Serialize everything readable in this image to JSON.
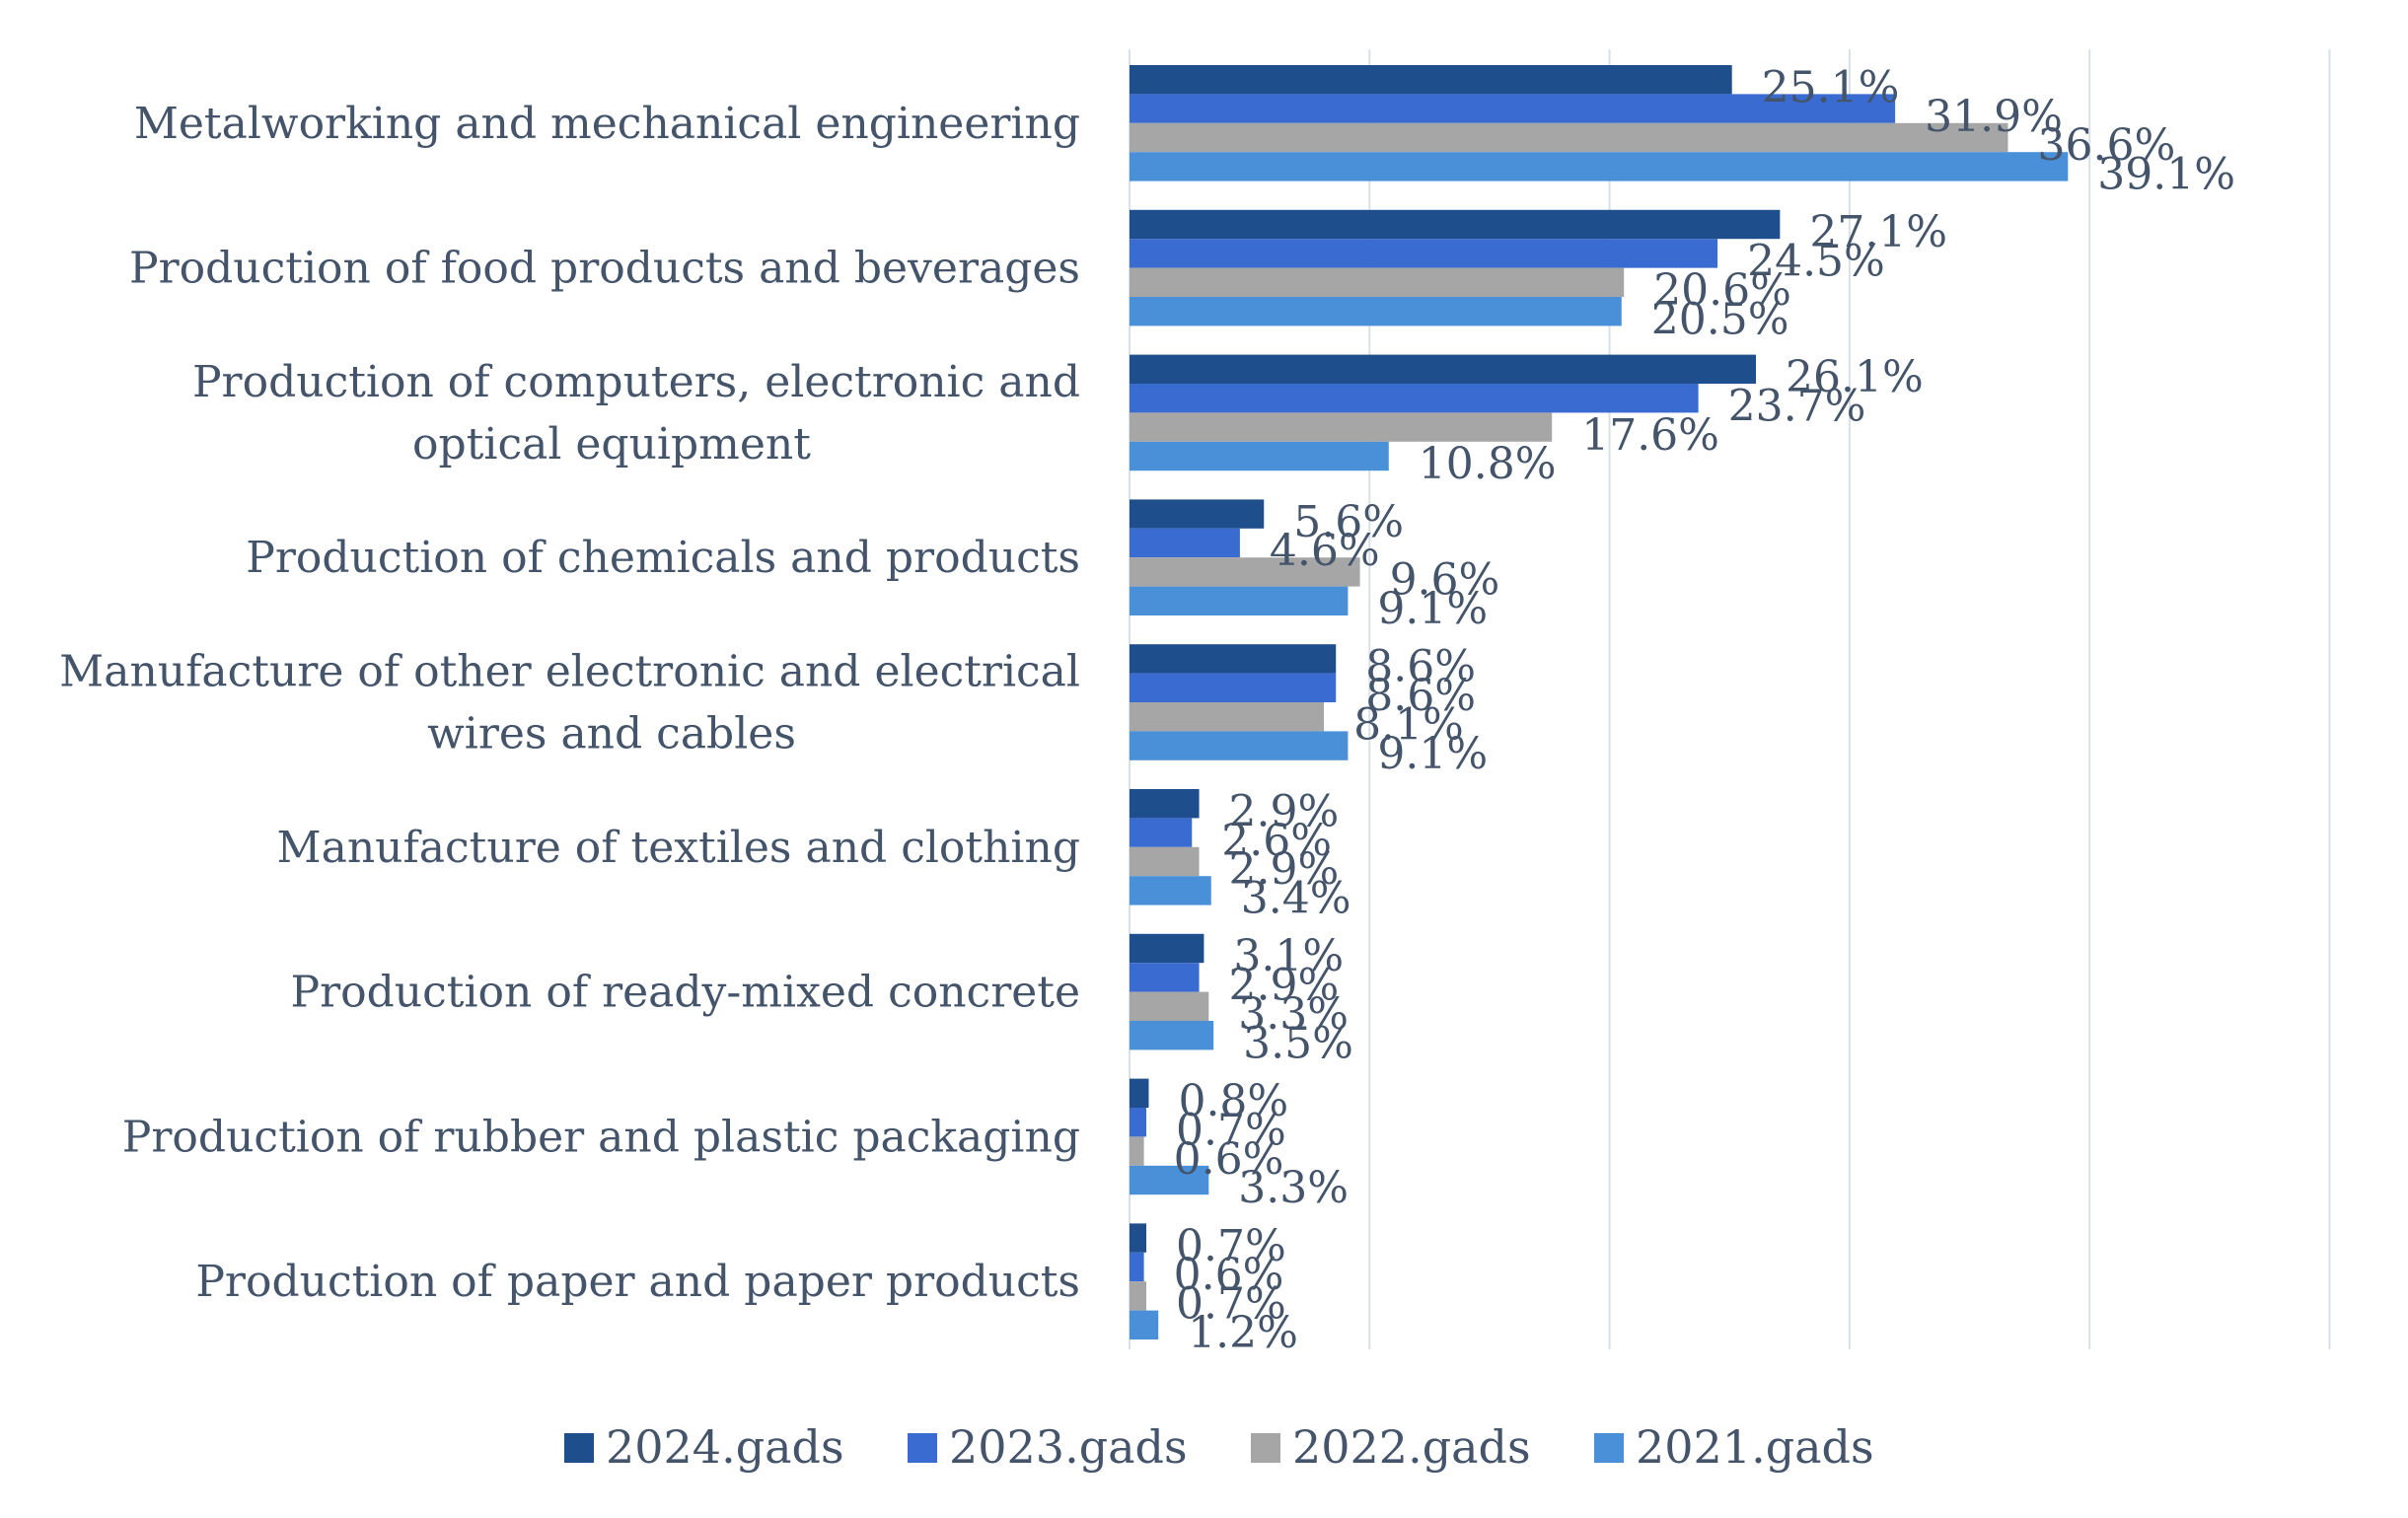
{
  "chart_data": {
    "type": "bar",
    "orientation": "horizontal",
    "categories": [
      [
        "Metalworking and mechanical engineering"
      ],
      [
        "Production of food products and beverages"
      ],
      [
        "Production of computers, electronic and",
        "optical equipment"
      ],
      [
        "Production of chemicals and products"
      ],
      [
        "Manufacture of other electronic and electrical",
        "wires and cables"
      ],
      [
        "Manufacture of textiles and clothing"
      ],
      [
        "Production of ready-mixed concrete"
      ],
      [
        "Production of rubber and plastic packaging"
      ],
      [
        "Production of paper and paper products"
      ]
    ],
    "series": [
      {
        "name": "2024.gads",
        "color": "#1f4e8c",
        "values": [
          25.1,
          27.1,
          26.1,
          5.6,
          8.6,
          2.9,
          3.1,
          0.8,
          0.7
        ]
      },
      {
        "name": "2023.gads",
        "color": "#3a6bd0",
        "values": [
          31.9,
          24.5,
          23.7,
          4.6,
          8.6,
          2.6,
          2.9,
          0.7,
          0.6
        ]
      },
      {
        "name": "2022.gads",
        "color": "#a6a6a6",
        "values": [
          36.6,
          20.6,
          17.6,
          9.6,
          8.1,
          2.9,
          3.3,
          0.6,
          0.7
        ]
      },
      {
        "name": "2021.gads",
        "color": "#4a90d9",
        "values": [
          39.1,
          20.5,
          10.8,
          9.1,
          9.1,
          3.4,
          3.5,
          3.3,
          1.2
        ]
      }
    ],
    "value_suffix": "%",
    "xlim": [
      0,
      50
    ],
    "grid": true,
    "legend": "bottom"
  }
}
